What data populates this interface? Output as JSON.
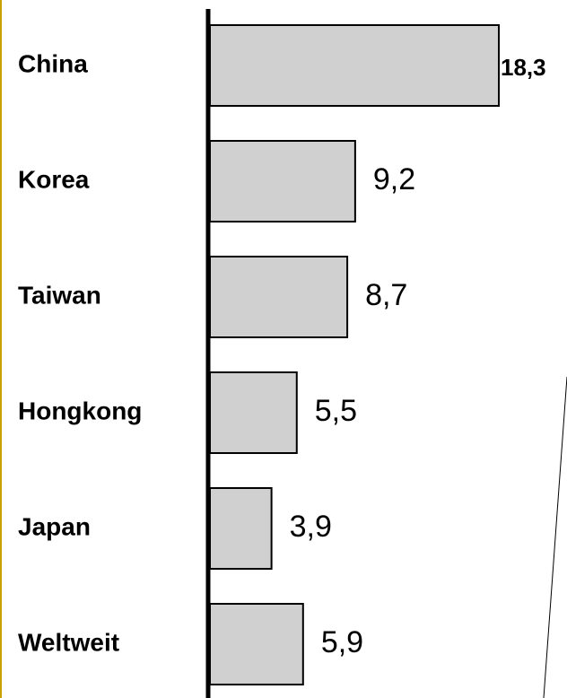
{
  "chart_data": {
    "type": "bar",
    "orientation": "horizontal",
    "categories": [
      "China",
      "Korea",
      "Taiwan",
      "Hongkong",
      "Japan",
      "Weltweit"
    ],
    "values": [
      18.3,
      9.2,
      8.7,
      5.5,
      3.9,
      5.9
    ],
    "value_labels": [
      "18,3",
      "9,2",
      "8,7",
      "5,5",
      "3,9",
      "5,9"
    ],
    "highlight_index": 0,
    "title": "",
    "xlabel": "",
    "ylabel": "",
    "xlim": [
      0,
      18.3
    ],
    "grid": false,
    "legend": "none",
    "colors": {
      "bar_fill": "#d0d0d0",
      "bar_stroke": "#000000",
      "axis": "#000000",
      "frame_accent": "#c8a000",
      "text": "#000000"
    }
  }
}
